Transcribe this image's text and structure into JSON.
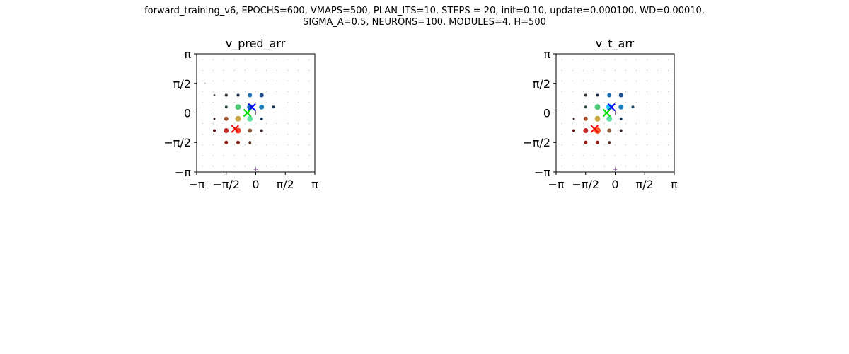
{
  "figure": {
    "suptitle_line1": "forward_training_v6, EPOCHS=600, VMAPS=500, PLAN_ITS=10, STEPS = 20, init=0.10, update=0.000100, WD=0.00010,",
    "suptitle_line2": "SIGMA_A=0.5, NEURONS=100, MODULES=4, H=500"
  },
  "chart_data": [
    {
      "type": "scatter",
      "title": "v_pred_arr",
      "xlabel": "",
      "ylabel": "",
      "xlim": [
        -3.1416,
        3.1416
      ],
      "ylim": [
        -3.1416,
        3.1416
      ],
      "xticks": [
        "−π",
        "−π/2",
        "0",
        "π/2",
        "π"
      ],
      "yticks": [
        "π",
        "π/2",
        "0",
        "−π/2",
        "−π"
      ],
      "grid": false,
      "points": [
        {
          "x": -2.7,
          "y": 1.57,
          "size": 1,
          "color": "#bbbbbb"
        },
        {
          "x": -1.57,
          "y": 0.94,
          "size": 2,
          "color": "#333333"
        },
        {
          "x": -0.94,
          "y": 0.94,
          "size": 2,
          "color": "#1b2a4a"
        },
        {
          "x": -0.31,
          "y": 0.94,
          "size": 2,
          "color": "#1b2a4a"
        },
        {
          "x": 0.31,
          "y": 0.94,
          "size": 2,
          "color": "#1b2a4a"
        },
        {
          "x": -2.2,
          "y": 0.94,
          "size": 1.5,
          "color": "#555555"
        },
        {
          "x": -1.57,
          "y": 0.94,
          "size": 2,
          "color": "#333333"
        },
        {
          "x": -0.94,
          "y": 0.94,
          "size": 2,
          "color": "#1b2a4a"
        },
        {
          "x": -0.94,
          "y": 0.31,
          "size": 4,
          "color": "#50c878"
        },
        {
          "x": -0.31,
          "y": 0.94,
          "size": 3,
          "color": "#1f6fb4"
        },
        {
          "x": 0.31,
          "y": 0.94,
          "size": 3,
          "color": "#1f4f8f"
        },
        {
          "x": 0.31,
          "y": 0.31,
          "size": 3.5,
          "color": "#1f7fbf"
        },
        {
          "x": -0.31,
          "y": 0.31,
          "size": 4,
          "color": "#1565c0"
        },
        {
          "x": 0.94,
          "y": 0.31,
          "size": 2,
          "color": "#1b3a5a"
        },
        {
          "x": -1.57,
          "y": 0.31,
          "size": 2,
          "color": "#2e4a3a"
        },
        {
          "x": -0.94,
          "y": -0.31,
          "size": 4,
          "color": "#c9a84a"
        },
        {
          "x": -0.31,
          "y": -0.31,
          "size": 4,
          "color": "#60e0a0"
        },
        {
          "x": 0.31,
          "y": -0.31,
          "size": 2,
          "color": "#1b3a5a"
        },
        {
          "x": -1.57,
          "y": -0.31,
          "size": 3,
          "color": "#a0522d"
        },
        {
          "x": -2.2,
          "y": -0.31,
          "size": 1.5,
          "color": "#3a1a1a"
        },
        {
          "x": -0.94,
          "y": -0.94,
          "size": 4,
          "color": "#e8462a"
        },
        {
          "x": -1.57,
          "y": -0.94,
          "size": 3.5,
          "color": "#c0282a"
        },
        {
          "x": -0.31,
          "y": -0.94,
          "size": 3,
          "color": "#8b5a3c"
        },
        {
          "x": -2.2,
          "y": -0.94,
          "size": 2,
          "color": "#5a1010"
        },
        {
          "x": 0.31,
          "y": -0.94,
          "size": 2,
          "color": "#3a2a2a"
        },
        {
          "x": -1.57,
          "y": -1.57,
          "size": 2.5,
          "color": "#9b1a10"
        },
        {
          "x": -0.94,
          "y": -1.57,
          "size": 2.5,
          "color": "#8b1a10"
        },
        {
          "x": -0.31,
          "y": -1.57,
          "size": 2,
          "color": "#5a2a1a"
        }
      ],
      "markers": [
        {
          "x": -0.2,
          "y": 0.3,
          "shape": "x",
          "color": "#0000ee"
        },
        {
          "x": -0.45,
          "y": 0.0,
          "shape": "x",
          "color": "#00dd00"
        },
        {
          "x": -1.1,
          "y": -0.85,
          "shape": "x",
          "color": "#ee0000"
        },
        {
          "x": 0.0,
          "y": 0.0,
          "shape": "+",
          "color": "#9966aa"
        },
        {
          "x": 0.0,
          "y": -3.0,
          "shape": "+",
          "color": "#9966aa"
        }
      ]
    },
    {
      "type": "scatter",
      "title": "v_t_arr",
      "xlabel": "",
      "ylabel": "",
      "xlim": [
        -3.1416,
        3.1416
      ],
      "ylim": [
        -3.1416,
        3.1416
      ],
      "xticks": [
        "−π",
        "−π/2",
        "0",
        "π/2",
        "π"
      ],
      "yticks": [
        "π",
        "π/2",
        "0",
        "−π/2",
        "−π"
      ],
      "grid": false,
      "points": [
        {
          "x": -1.57,
          "y": 0.94,
          "size": 2,
          "color": "#333333"
        },
        {
          "x": -0.94,
          "y": 0.94,
          "size": 2,
          "color": "#1b2a4a"
        },
        {
          "x": -0.31,
          "y": 0.94,
          "size": 2,
          "color": "#1b2a4a"
        },
        {
          "x": 0.31,
          "y": 0.94,
          "size": 2,
          "color": "#1b2a4a"
        },
        {
          "x": -0.94,
          "y": 0.31,
          "size": 4,
          "color": "#50c878"
        },
        {
          "x": -0.31,
          "y": 0.31,
          "size": 4.5,
          "color": "#20d0ff"
        },
        {
          "x": 0.31,
          "y": 0.31,
          "size": 3.5,
          "color": "#1f7fbf"
        },
        {
          "x": -0.31,
          "y": 0.94,
          "size": 3,
          "color": "#1f6fb4"
        },
        {
          "x": 0.31,
          "y": 0.94,
          "size": 3,
          "color": "#1f4f8f"
        },
        {
          "x": 0.94,
          "y": 0.31,
          "size": 2,
          "color": "#1b3a5a"
        },
        {
          "x": -1.57,
          "y": 0.31,
          "size": 2,
          "color": "#2e4a3a"
        },
        {
          "x": -0.94,
          "y": -0.31,
          "size": 4,
          "color": "#c9a84a"
        },
        {
          "x": -0.31,
          "y": -0.31,
          "size": 4,
          "color": "#60e0a0"
        },
        {
          "x": 0.31,
          "y": -0.31,
          "size": 2,
          "color": "#1b3a5a"
        },
        {
          "x": -1.57,
          "y": -0.31,
          "size": 3,
          "color": "#a0522d"
        },
        {
          "x": -2.2,
          "y": -0.31,
          "size": 1.5,
          "color": "#3a1a1a"
        },
        {
          "x": -0.94,
          "y": -0.94,
          "size": 4.5,
          "color": "#ff5a2a"
        },
        {
          "x": -1.57,
          "y": -0.94,
          "size": 3.5,
          "color": "#c0282a"
        },
        {
          "x": -0.31,
          "y": -0.94,
          "size": 3,
          "color": "#8b5a3c"
        },
        {
          "x": -2.2,
          "y": -0.94,
          "size": 2,
          "color": "#5a1010"
        },
        {
          "x": 0.31,
          "y": -0.94,
          "size": 2,
          "color": "#3a2a2a"
        },
        {
          "x": -1.57,
          "y": -1.57,
          "size": 2.5,
          "color": "#9b1a10"
        },
        {
          "x": -0.94,
          "y": -1.57,
          "size": 2.5,
          "color": "#8b1a10"
        },
        {
          "x": -0.31,
          "y": -1.57,
          "size": 2,
          "color": "#5a2a1a"
        }
      ],
      "markers": [
        {
          "x": -0.2,
          "y": 0.3,
          "shape": "x",
          "color": "#0000ee"
        },
        {
          "x": -0.45,
          "y": 0.0,
          "shape": "x",
          "color": "#00dd00"
        },
        {
          "x": -1.1,
          "y": -0.85,
          "shape": "x",
          "color": "#ee0000"
        },
        {
          "x": 0.0,
          "y": 0.0,
          "shape": "+",
          "color": "#9966aa"
        },
        {
          "x": 0.0,
          "y": -3.0,
          "shape": "+",
          "color": "#9966aa"
        }
      ]
    }
  ]
}
